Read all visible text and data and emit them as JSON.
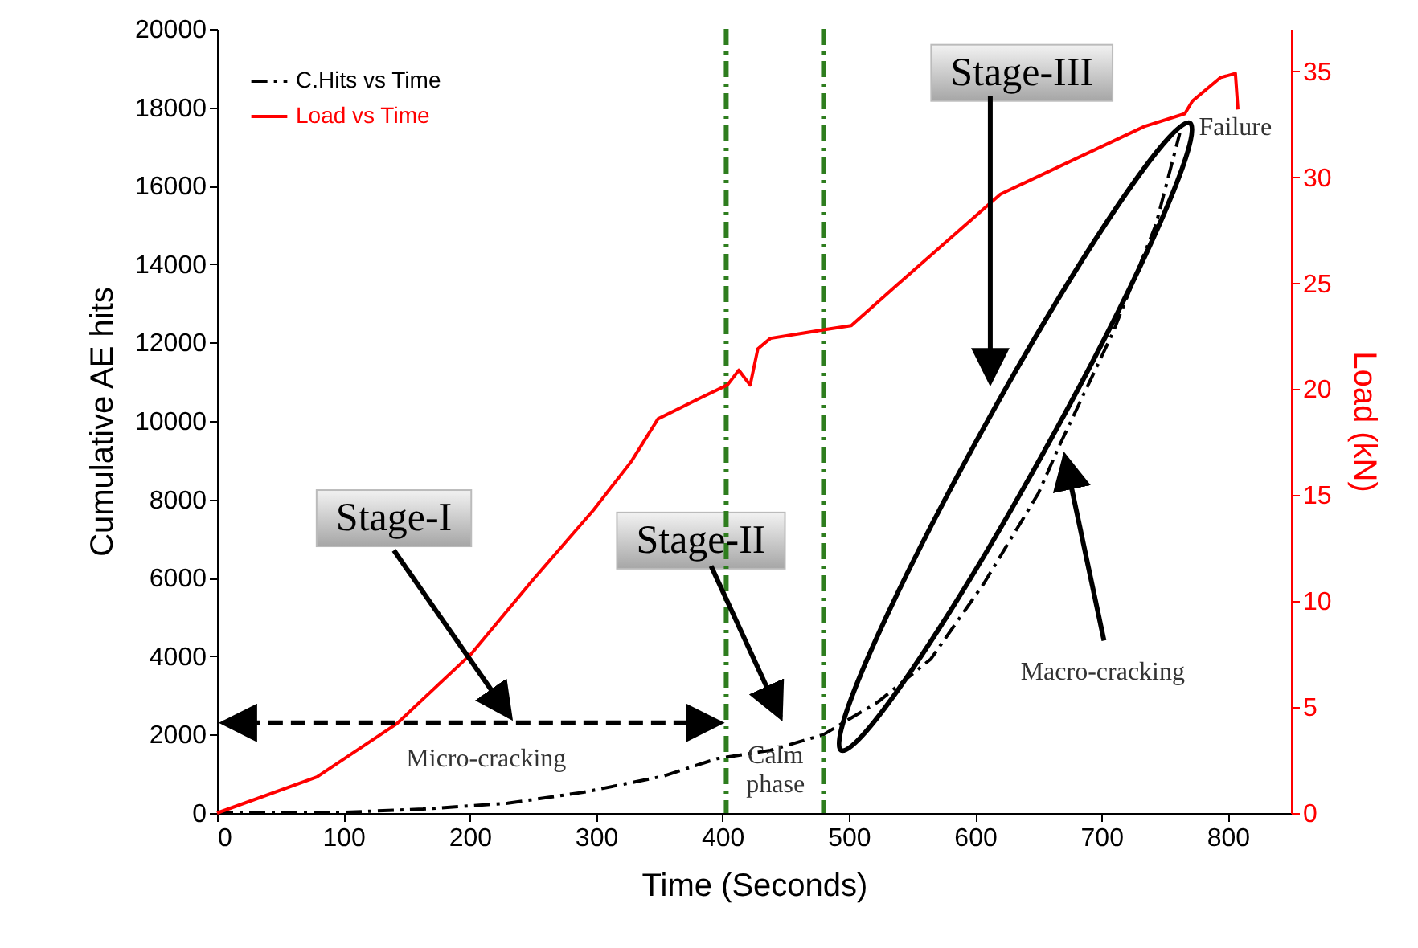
{
  "chart_data": {
    "type": "line",
    "xlabel": "Time (Seconds)",
    "ylabel": "Cumulative AE hits",
    "y2label": "Load (kN)",
    "series": [
      {
        "name": "C.Hits vs Time",
        "color": "#000000",
        "line_style": "dashed",
        "x": [
          0,
          100,
          163,
          230,
          290,
          353,
          396,
          438,
          480,
          523,
          565,
          607,
          650,
          667,
          709,
          743,
          762
        ],
        "values": [
          0,
          20,
          100,
          250,
          530,
          940,
          1390,
          1600,
          2000,
          2830,
          3930,
          5860,
          8150,
          9390,
          12250,
          15000,
          17340
        ]
      },
      {
        "name": "Load vs Time",
        "color": "#ff0000",
        "line_style": "solid",
        "axis": "y2",
        "x": [
          0,
          79,
          142,
          201,
          250,
          298,
          328,
          349,
          383,
          404,
          413,
          418,
          422,
          428,
          438,
          480,
          502,
          536,
          620,
          734,
          766,
          772,
          794,
          806,
          808
        ],
        "values": [
          0,
          1.7,
          4.2,
          7.5,
          11,
          14.3,
          16.6,
          18.6,
          19.6,
          20.2,
          20.9,
          20.5,
          20.2,
          21.9,
          22.4,
          22.8,
          23.0,
          24.8,
          29.2,
          32.4,
          33.0,
          33.6,
          34.7,
          34.9,
          33.2
        ]
      }
    ],
    "xlim": [
      0,
      850
    ],
    "xticks": [
      0,
      100,
      200,
      300,
      400,
      500,
      600,
      700,
      800
    ],
    "ylim": [
      0,
      20000
    ],
    "yticks": [
      0,
      2000,
      4000,
      6000,
      8000,
      10000,
      12000,
      14000,
      16000,
      18000,
      20000
    ],
    "y2lim": [
      0,
      37
    ],
    "y2ticks": [
      0,
      5,
      10,
      15,
      20,
      25,
      30,
      35
    ],
    "ref_lines": [
      {
        "axis": "x",
        "value": 403,
        "color": "#2e7d1e",
        "line_style": "dashed"
      },
      {
        "axis": "x",
        "value": 480,
        "color": "#2e7d1e",
        "line_style": "dashed"
      }
    ],
    "annotations": [
      "Stage-I",
      "Stage-II",
      "Stage-III",
      "Micro-cracking",
      "Calm phase",
      "Macro-cracking",
      "Failure"
    ],
    "legend": "top left",
    "grid": false
  }
}
